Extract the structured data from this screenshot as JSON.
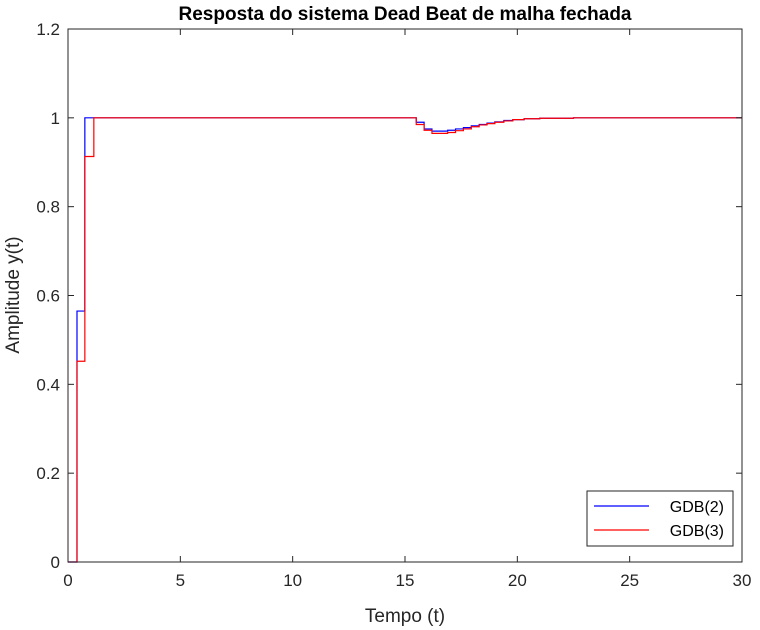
{
  "chart_data": {
    "type": "line",
    "style": "stairs",
    "title": "Resposta do sistema Dead Beat de malha fechada",
    "xlabel": "Tempo (t)",
    "ylabel": "Amplitude y(t)",
    "xlim": [
      0,
      30
    ],
    "ylim": [
      0,
      1.2
    ],
    "x_ticks": [
      0,
      5,
      10,
      15,
      20,
      25,
      30
    ],
    "x_tick_labels": [
      "0",
      "5",
      "10",
      "15",
      "20",
      "25",
      "30"
    ],
    "y_ticks": [
      0,
      0.2,
      0.4,
      0.6,
      0.8,
      1,
      1.2
    ],
    "y_tick_labels": [
      "0",
      "0.2",
      "0.4",
      "0.6",
      "0.8",
      "1",
      "1.2"
    ],
    "grid": false,
    "legend_position": "bottom-right",
    "series": [
      {
        "name": "GDB(2)",
        "color": "#0000ff",
        "x": [
          0,
          0.4,
          0.75,
          15.15,
          15.5,
          15.85,
          16.2,
          16.55,
          16.9,
          17.25,
          17.6,
          17.95,
          18.3,
          18.65,
          19.0,
          19.4,
          19.8,
          20.3,
          21.0,
          22.5,
          30
        ],
        "y": [
          0,
          0.565,
          1.0,
          1.0,
          0.99,
          0.975,
          0.97,
          0.97,
          0.972,
          0.975,
          0.978,
          0.982,
          0.985,
          0.988,
          0.991,
          0.994,
          0.996,
          0.998,
          0.999,
          1.0,
          1.0
        ]
      },
      {
        "name": "GDB(3)",
        "color": "#ff0000",
        "x": [
          0,
          0.4,
          0.75,
          1.15,
          15.15,
          15.5,
          15.85,
          16.2,
          16.55,
          16.9,
          17.25,
          17.6,
          17.95,
          18.3,
          18.65,
          19.0,
          19.4,
          19.8,
          20.3,
          21.0,
          22.5,
          30
        ],
        "y": [
          0,
          0.452,
          0.913,
          1.0,
          1.0,
          0.985,
          0.972,
          0.965,
          0.965,
          0.967,
          0.971,
          0.975,
          0.98,
          0.984,
          0.987,
          0.99,
          0.993,
          0.996,
          0.998,
          0.999,
          1.0,
          1.0
        ]
      }
    ]
  }
}
